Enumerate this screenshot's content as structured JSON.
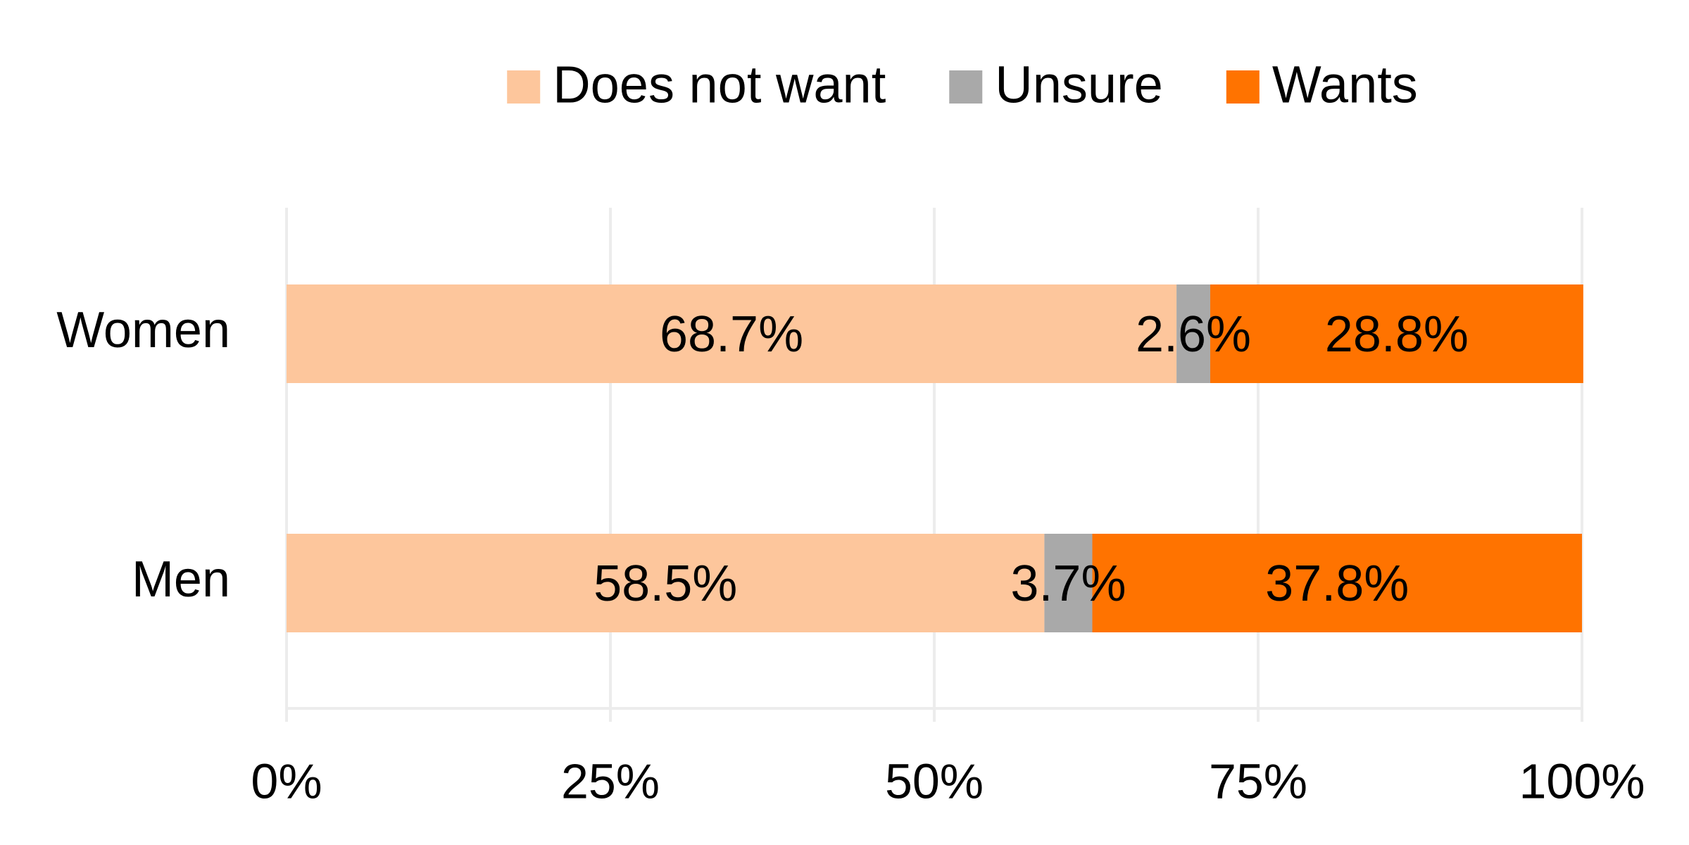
{
  "chart_data": {
    "type": "stacked_barh",
    "categories": [
      "Women",
      "Men"
    ],
    "series": [
      {
        "name": "Does not want",
        "color": "#fdc69c",
        "values": [
          68.7,
          58.5
        ],
        "value_labels": [
          "68.7%",
          "58.5%"
        ]
      },
      {
        "name": "Unsure",
        "color": "#a9a9a9",
        "values": [
          2.6,
          3.7
        ],
        "value_labels": [
          "2.6%",
          "3.7%"
        ]
      },
      {
        "name": "Wants",
        "color": "#ff7300",
        "values": [
          28.8,
          37.8
        ],
        "value_labels": [
          "28.8%",
          "37.8%"
        ]
      }
    ],
    "xlim": [
      0,
      100
    ],
    "xticks": [
      {
        "value": 0,
        "label": "0%"
      },
      {
        "value": 25,
        "label": "25%"
      },
      {
        "value": 50,
        "label": "50%"
      },
      {
        "value": 75,
        "label": "75%"
      },
      {
        "value": 100,
        "label": "100%"
      }
    ],
    "grid": true,
    "legend": "top"
  }
}
